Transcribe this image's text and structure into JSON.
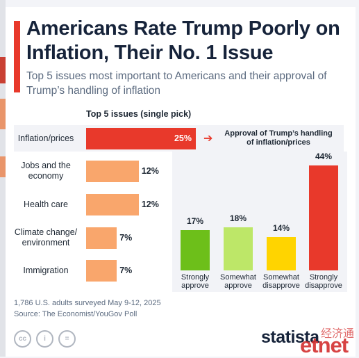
{
  "header": {
    "title": "Americans Rate Trump Poorly on Inflation, Their No. 1 Issue",
    "subtitle": "Top 5 issues most important to Americans and their approval of Trump’s handling of inflation"
  },
  "colors": {
    "accent_red": "#e8392b",
    "orange": "#f9a66c",
    "dark_green": "#6dbf1a",
    "light_green": "#bde768",
    "yellow": "#ffd400",
    "red": "#e8392b"
  },
  "chart_data": [
    {
      "type": "bar",
      "orientation": "horizontal",
      "title": "Top 5 issues (single pick)",
      "categories": [
        "Inflation/prices",
        "Jobs and the economy",
        "Health care",
        "Climate change/ environment",
        "Immigration"
      ],
      "category_labels": [
        [
          "Inflation/prices"
        ],
        [
          "Jobs and the",
          "economy"
        ],
        [
          "Health care"
        ],
        [
          "Climate change/",
          "environment"
        ],
        [
          "Immigration"
        ]
      ],
      "values": [
        25,
        12,
        12,
        7,
        7
      ],
      "value_labels": [
        "25%",
        "12%",
        "12%",
        "7%",
        "7%"
      ],
      "unit": "%",
      "bar_colors": [
        "#e8392b",
        "#f9a66c",
        "#f9a66c",
        "#f9a66c",
        "#f9a66c"
      ],
      "highlighted": "Inflation/prices",
      "xlim": [
        0,
        25
      ]
    },
    {
      "type": "bar",
      "orientation": "vertical",
      "title": "Approval of Trump’s handling of inflation/prices",
      "title_lines": [
        "Approval of Trump’s handling",
        "of inflation/prices"
      ],
      "categories": [
        "Strongly approve",
        "Somewhat approve",
        "Somewhat disapprove",
        "Strongly disapprove"
      ],
      "category_labels": [
        [
          "Strongly",
          "approve"
        ],
        [
          "Somewhat",
          "approve"
        ],
        [
          "Somewhat",
          "disapprove"
        ],
        [
          "Strongly",
          "disapprove"
        ]
      ],
      "values": [
        17,
        18,
        14,
        44
      ],
      "value_labels": [
        "17%",
        "18%",
        "14%",
        "44%"
      ],
      "unit": "%",
      "bar_colors": [
        "#6dbf1a",
        "#bde768",
        "#ffd400",
        "#e8392b"
      ],
      "ylim": [
        0,
        44
      ]
    }
  ],
  "footer": {
    "survey_note": "1,786 U.S. adults surveyed May 9-12, 2025",
    "source": "Source: The Economist/YouGov Poll",
    "license_icons": [
      {
        "name": "cc-icon",
        "glyph": "cc"
      },
      {
        "name": "attribution-icon",
        "glyph": "i"
      },
      {
        "name": "no-derivatives-icon",
        "glyph": "="
      }
    ],
    "brand": "statista",
    "watermark": "etnet",
    "watermark_cn": "经济通"
  }
}
